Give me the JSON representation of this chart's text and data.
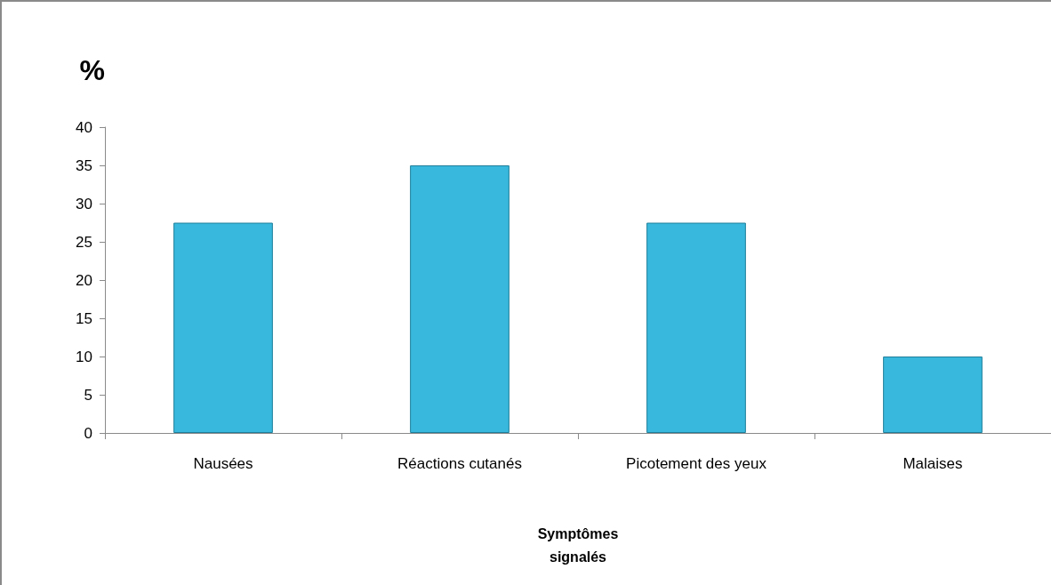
{
  "chart_data": {
    "type": "bar",
    "xlabel": "Symptômes signalés",
    "ylabel": "%",
    "categories": [
      "Nausées",
      "Réactions cutanés",
      "Picotement des yeux",
      "Malaises"
    ],
    "values": [
      27.5,
      35,
      27.5,
      10
    ],
    "color": "#38b8dc",
    "ylim": [
      0,
      40
    ],
    "yticks": [
      0,
      5,
      10,
      15,
      20,
      25,
      30,
      35,
      40
    ],
    "grid": false
  }
}
